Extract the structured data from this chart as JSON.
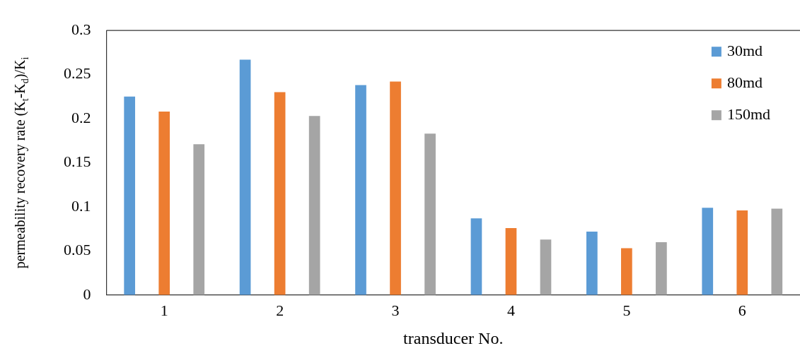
{
  "chart_data": {
    "type": "bar",
    "xlabel": "transducer No.",
    "ylabel": "permeability recovery rate (K$_{t}$-K$_{d}$)/K$_{i}$",
    "categories": [
      "1",
      "2",
      "3",
      "4",
      "5",
      "6"
    ],
    "series": [
      {
        "name": "30md",
        "color": "#5b9bd5",
        "values": [
          0.225,
          0.267,
          0.238,
          0.087,
          0.072,
          0.099
        ]
      },
      {
        "name": "80md",
        "color": "#ed7d31",
        "values": [
          0.208,
          0.23,
          0.242,
          0.076,
          0.053,
          0.096
        ]
      },
      {
        "name": "150md",
        "color": "#a5a5a5",
        "values": [
          0.171,
          0.203,
          0.183,
          0.063,
          0.06,
          0.098
        ]
      }
    ],
    "ylim": [
      0,
      0.3
    ],
    "yticks": [
      0,
      0.05,
      0.1,
      0.15,
      0.2,
      0.25,
      0.3
    ],
    "grid": false,
    "legend": "top right"
  }
}
